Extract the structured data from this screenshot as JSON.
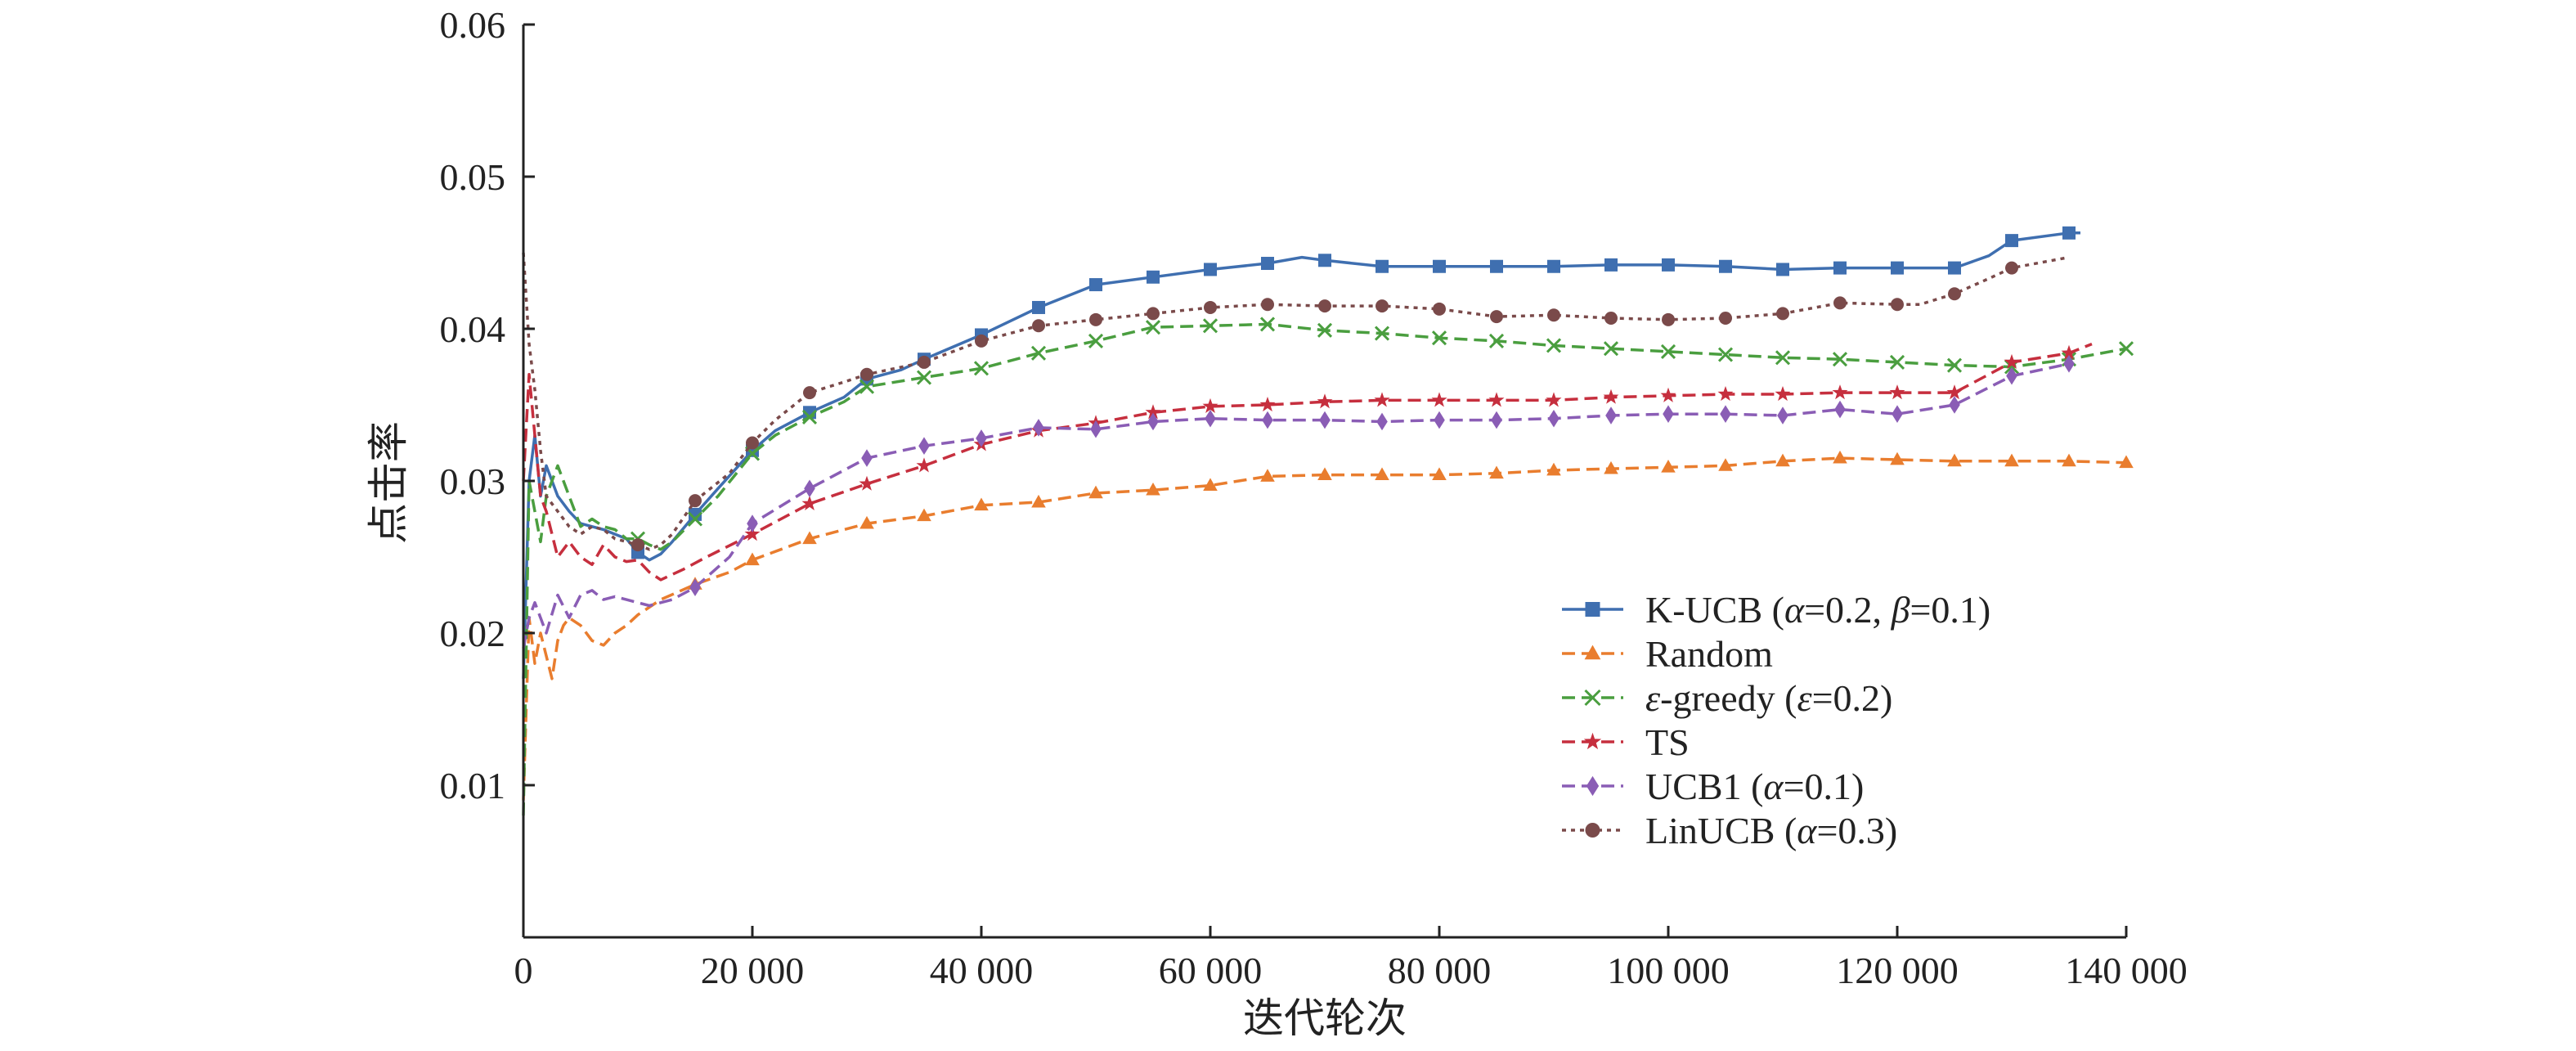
{
  "chart_data": {
    "type": "line",
    "title": "",
    "xlabel": "迭代轮次",
    "ylabel": "点击率",
    "xlim": [
      0,
      140000
    ],
    "ylim": [
      0,
      0.06
    ],
    "xticks": [
      0,
      20000,
      40000,
      60000,
      80000,
      100000,
      120000,
      140000
    ],
    "xtick_labels": [
      "0",
      "20 000",
      "40 000",
      "60 000",
      "80 000",
      "100 000",
      "120 000",
      "140 000"
    ],
    "yticks": [
      0.01,
      0.02,
      0.03,
      0.04,
      0.05,
      0.06
    ],
    "ytick_labels": [
      "0.01",
      "0.02",
      "0.03",
      "0.04",
      "0.05",
      "0.06"
    ],
    "grid": false,
    "legend_position": "lower-right",
    "series": [
      {
        "name": "K-UCB (α=0.2, β=0.1)",
        "legend_label": {
          "prefix": "K-UCB (",
          "params": [
            [
              "α",
              "=0.2, "
            ],
            [
              "β",
              "=0.1)"
            ]
          ]
        },
        "color": "#3f6fb0",
        "marker": "square",
        "dash": "solid",
        "x": [
          0,
          500,
          1000,
          1500,
          2000,
          3000,
          4000,
          5000,
          6000,
          7000,
          8000,
          9000,
          10000,
          11000,
          12000,
          13000,
          15000,
          17000,
          20000,
          22000,
          25000,
          28000,
          30000,
          33000,
          35000,
          40000,
          45000,
          50000,
          55000,
          60000,
          65000,
          68000,
          70000,
          75000,
          80000,
          85000,
          90000,
          95000,
          100000,
          105000,
          110000,
          115000,
          120000,
          125000,
          128000,
          130000,
          135000,
          136000
        ],
        "y": [
          0.017,
          0.03,
          0.033,
          0.029,
          0.031,
          0.029,
          0.028,
          0.0272,
          0.027,
          0.0268,
          0.0265,
          0.0262,
          0.0253,
          0.0248,
          0.0252,
          0.026,
          0.0278,
          0.0295,
          0.032,
          0.0333,
          0.0345,
          0.0355,
          0.0367,
          0.0373,
          0.038,
          0.0396,
          0.0414,
          0.0429,
          0.0434,
          0.0439,
          0.0443,
          0.0447,
          0.0445,
          0.0441,
          0.0441,
          0.0441,
          0.0441,
          0.0442,
          0.0442,
          0.0441,
          0.0439,
          0.044,
          0.044,
          0.044,
          0.0448,
          0.0458,
          0.0463,
          0.0463
        ],
        "marker_x": [
          10000,
          15000,
          20000,
          25000,
          30000,
          35000,
          40000,
          45000,
          50000,
          55000,
          60000,
          65000,
          70000,
          75000,
          80000,
          85000,
          90000,
          95000,
          100000,
          105000,
          110000,
          115000,
          120000,
          125000,
          130000,
          135000
        ]
      },
      {
        "name": "Random",
        "legend_label": {
          "prefix": "Random",
          "params": []
        },
        "color": "#e97d2e",
        "marker": "triangle",
        "dash": "dashed",
        "x": [
          0,
          500,
          1000,
          1500,
          2000,
          2500,
          3000,
          3500,
          4000,
          5000,
          6000,
          7000,
          8000,
          9000,
          10000,
          12000,
          15000,
          18000,
          20000,
          25000,
          30000,
          35000,
          40000,
          45000,
          50000,
          55000,
          60000,
          65000,
          70000,
          75000,
          80000,
          85000,
          90000,
          95000,
          100000,
          105000,
          110000,
          115000,
          120000,
          125000,
          130000,
          135000,
          140000
        ],
        "y": [
          0.009,
          0.021,
          0.018,
          0.02,
          0.0185,
          0.017,
          0.0195,
          0.0205,
          0.021,
          0.0205,
          0.0195,
          0.0192,
          0.02,
          0.0205,
          0.0212,
          0.0222,
          0.0232,
          0.024,
          0.0248,
          0.0262,
          0.0272,
          0.0277,
          0.0284,
          0.0286,
          0.0292,
          0.0294,
          0.0297,
          0.0303,
          0.0304,
          0.0304,
          0.0304,
          0.0305,
          0.0307,
          0.0308,
          0.0309,
          0.031,
          0.0313,
          0.0315,
          0.0314,
          0.0313,
          0.0313,
          0.0313,
          0.0312
        ],
        "marker_x": [
          15000,
          20000,
          25000,
          30000,
          35000,
          40000,
          45000,
          50000,
          55000,
          60000,
          65000,
          70000,
          75000,
          80000,
          85000,
          90000,
          95000,
          100000,
          105000,
          110000,
          115000,
          120000,
          125000,
          130000,
          135000,
          140000
        ]
      },
      {
        "name": "ε-greedy (ε=0.2)",
        "legend_label": {
          "prefix": "",
          "params": [
            [
              "ε",
              "-greedy ("
            ],
            [
              "ε",
              "=0.2)"
            ]
          ]
        },
        "color": "#4a9e3f",
        "marker": "x",
        "dash": "dashed",
        "x": [
          0,
          500,
          1000,
          1500,
          2000,
          3000,
          4000,
          5000,
          6000,
          7000,
          8000,
          9000,
          10000,
          11000,
          12000,
          13000,
          15000,
          17000,
          20000,
          22000,
          25000,
          28000,
          30000,
          35000,
          40000,
          45000,
          50000,
          55000,
          60000,
          65000,
          70000,
          75000,
          80000,
          85000,
          90000,
          95000,
          100000,
          105000,
          110000,
          115000,
          120000,
          125000,
          130000,
          135000,
          140000
        ],
        "y": [
          0.008,
          0.03,
          0.028,
          0.026,
          0.029,
          0.031,
          0.029,
          0.027,
          0.0275,
          0.027,
          0.0268,
          0.0262,
          0.0262,
          0.0258,
          0.0255,
          0.026,
          0.0275,
          0.029,
          0.0318,
          0.033,
          0.0342,
          0.0352,
          0.0362,
          0.0368,
          0.0374,
          0.0384,
          0.0392,
          0.0401,
          0.0402,
          0.0403,
          0.0399,
          0.0397,
          0.0394,
          0.0392,
          0.0389,
          0.0387,
          0.0385,
          0.0383,
          0.0381,
          0.038,
          0.0378,
          0.0376,
          0.0375,
          0.038,
          0.0387
        ],
        "marker_x": [
          10000,
          15000,
          20000,
          25000,
          30000,
          35000,
          40000,
          45000,
          50000,
          55000,
          60000,
          65000,
          70000,
          75000,
          80000,
          85000,
          90000,
          95000,
          100000,
          105000,
          110000,
          115000,
          120000,
          125000,
          130000,
          135000,
          140000
        ]
      },
      {
        "name": "TS",
        "legend_label": {
          "prefix": "TS",
          "params": []
        },
        "color": "#c62f3e",
        "marker": "star",
        "dash": "dashed",
        "x": [
          0,
          500,
          1000,
          1500,
          2000,
          3000,
          4000,
          5000,
          6000,
          7000,
          8000,
          9000,
          10000,
          11000,
          12000,
          14000,
          16000,
          20000,
          25000,
          30000,
          35000,
          40000,
          45000,
          50000,
          55000,
          60000,
          65000,
          70000,
          75000,
          80000,
          85000,
          90000,
          95000,
          100000,
          105000,
          110000,
          115000,
          120000,
          125000,
          130000,
          135000,
          137000
        ],
        "y": [
          0.03,
          0.037,
          0.033,
          0.029,
          0.028,
          0.025,
          0.026,
          0.025,
          0.0245,
          0.0258,
          0.025,
          0.0247,
          0.0248,
          0.024,
          0.0235,
          0.0242,
          0.025,
          0.0265,
          0.0285,
          0.0298,
          0.031,
          0.0324,
          0.0333,
          0.0338,
          0.0345,
          0.0349,
          0.035,
          0.0352,
          0.0353,
          0.0353,
          0.0353,
          0.0353,
          0.0355,
          0.0356,
          0.0357,
          0.0357,
          0.0358,
          0.0358,
          0.0358,
          0.0378,
          0.0384,
          0.039
        ],
        "marker_x": [
          20000,
          25000,
          30000,
          35000,
          40000,
          45000,
          50000,
          55000,
          60000,
          65000,
          70000,
          75000,
          80000,
          85000,
          90000,
          95000,
          100000,
          105000,
          110000,
          115000,
          120000,
          125000,
          130000,
          135000
        ]
      },
      {
        "name": "UCB1 (α=0.1)",
        "legend_label": {
          "prefix": "UCB1 (",
          "params": [
            [
              "α",
              "=0.1)"
            ]
          ]
        },
        "color": "#8a5db5",
        "marker": "diamond",
        "dash": "dashed",
        "x": [
          0,
          500,
          1000,
          1500,
          2000,
          3000,
          4000,
          5000,
          6000,
          7000,
          8000,
          9000,
          10000,
          11000,
          12000,
          13000,
          15000,
          18000,
          20000,
          25000,
          30000,
          35000,
          40000,
          45000,
          50000,
          55000,
          60000,
          65000,
          70000,
          75000,
          80000,
          85000,
          90000,
          95000,
          100000,
          105000,
          110000,
          115000,
          120000,
          125000,
          130000,
          135000
        ],
        "y": [
          0.019,
          0.021,
          0.022,
          0.021,
          0.02,
          0.0225,
          0.021,
          0.0225,
          0.0228,
          0.0222,
          0.0224,
          0.0222,
          0.022,
          0.0218,
          0.022,
          0.0222,
          0.023,
          0.025,
          0.0272,
          0.0295,
          0.0315,
          0.0323,
          0.0328,
          0.0335,
          0.0334,
          0.0339,
          0.0341,
          0.034,
          0.034,
          0.0339,
          0.034,
          0.034,
          0.0341,
          0.0343,
          0.0344,
          0.0344,
          0.0343,
          0.0347,
          0.0344,
          0.035,
          0.0369,
          0.0377
        ],
        "marker_x": [
          15000,
          20000,
          25000,
          30000,
          35000,
          40000,
          45000,
          50000,
          55000,
          60000,
          65000,
          70000,
          75000,
          80000,
          85000,
          90000,
          95000,
          100000,
          105000,
          110000,
          115000,
          120000,
          125000,
          130000,
          135000
        ]
      },
      {
        "name": "LinUCB (α=0.3)",
        "legend_label": {
          "prefix": "LinUCB (",
          "params": [
            [
              "α",
              "=0.3)"
            ]
          ]
        },
        "color": "#7a4a4a",
        "marker": "circle",
        "dash": "dotted",
        "x": [
          0,
          500,
          1000,
          1500,
          2000,
          3000,
          4000,
          5000,
          6000,
          7000,
          8000,
          9000,
          10000,
          11000,
          12000,
          13000,
          15000,
          18000,
          20000,
          22000,
          25000,
          28000,
          30000,
          35000,
          40000,
          45000,
          50000,
          55000,
          60000,
          65000,
          70000,
          75000,
          80000,
          85000,
          90000,
          95000,
          100000,
          105000,
          110000,
          115000,
          120000,
          122000,
          125000,
          128000,
          130000,
          135000
        ],
        "y": [
          0.045,
          0.039,
          0.036,
          0.032,
          0.029,
          0.028,
          0.027,
          0.0265,
          0.027,
          0.0268,
          0.0262,
          0.026,
          0.0258,
          0.0255,
          0.0258,
          0.0265,
          0.0287,
          0.0305,
          0.0325,
          0.034,
          0.0358,
          0.0365,
          0.037,
          0.0378,
          0.0392,
          0.0402,
          0.0406,
          0.041,
          0.0414,
          0.0416,
          0.0415,
          0.0415,
          0.0413,
          0.0408,
          0.0409,
          0.0407,
          0.0406,
          0.0407,
          0.041,
          0.0417,
          0.0416,
          0.0416,
          0.0423,
          0.0433,
          0.044,
          0.0447
        ],
        "marker_x": [
          10000,
          15000,
          20000,
          25000,
          30000,
          35000,
          40000,
          45000,
          50000,
          55000,
          60000,
          65000,
          70000,
          75000,
          80000,
          85000,
          90000,
          95000,
          100000,
          105000,
          110000,
          115000,
          120000,
          125000,
          130000
        ]
      }
    ]
  }
}
